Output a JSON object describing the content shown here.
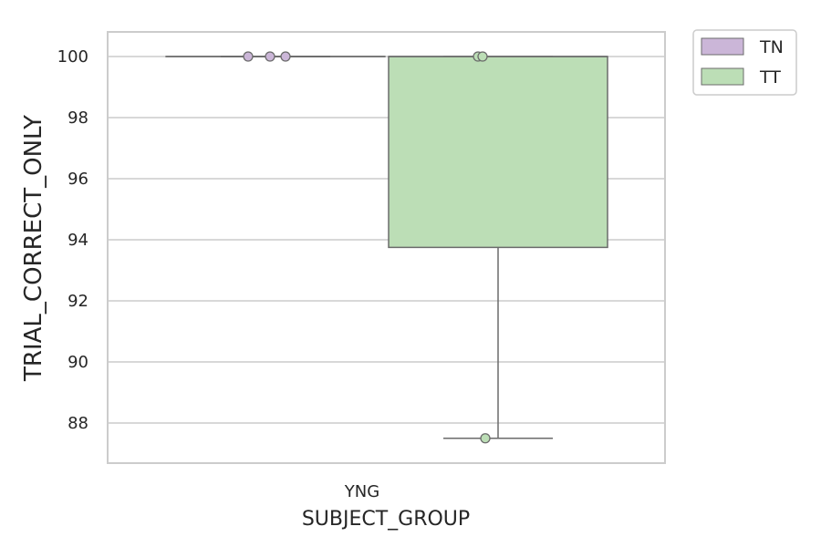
{
  "chart_data": {
    "type": "box",
    "xlabel": "SUBJECT_GROUP",
    "ylabel": "TRIAL_CORRECT_ONLY",
    "categories": [
      "YNG"
    ],
    "ylim": [
      86.7,
      100.8
    ],
    "yticks": [
      88,
      90,
      92,
      94,
      96,
      98,
      100
    ],
    "grid": true,
    "legend_position": "outside-top-right",
    "series": [
      {
        "name": "TN",
        "color": "#cbb6d8",
        "box": {
          "whisker_low": 100,
          "q1": 100,
          "median": 100,
          "q3": 100,
          "whisker_high": 100
        },
        "points": [
          100,
          100,
          100
        ]
      },
      {
        "name": "TT",
        "color": "#bcdeb6",
        "box": {
          "whisker_low": 87.5,
          "q1": 93.75,
          "median": 100,
          "q3": 100,
          "whisker_high": 100
        },
        "points": [
          100,
          100,
          87.5
        ]
      }
    ]
  }
}
